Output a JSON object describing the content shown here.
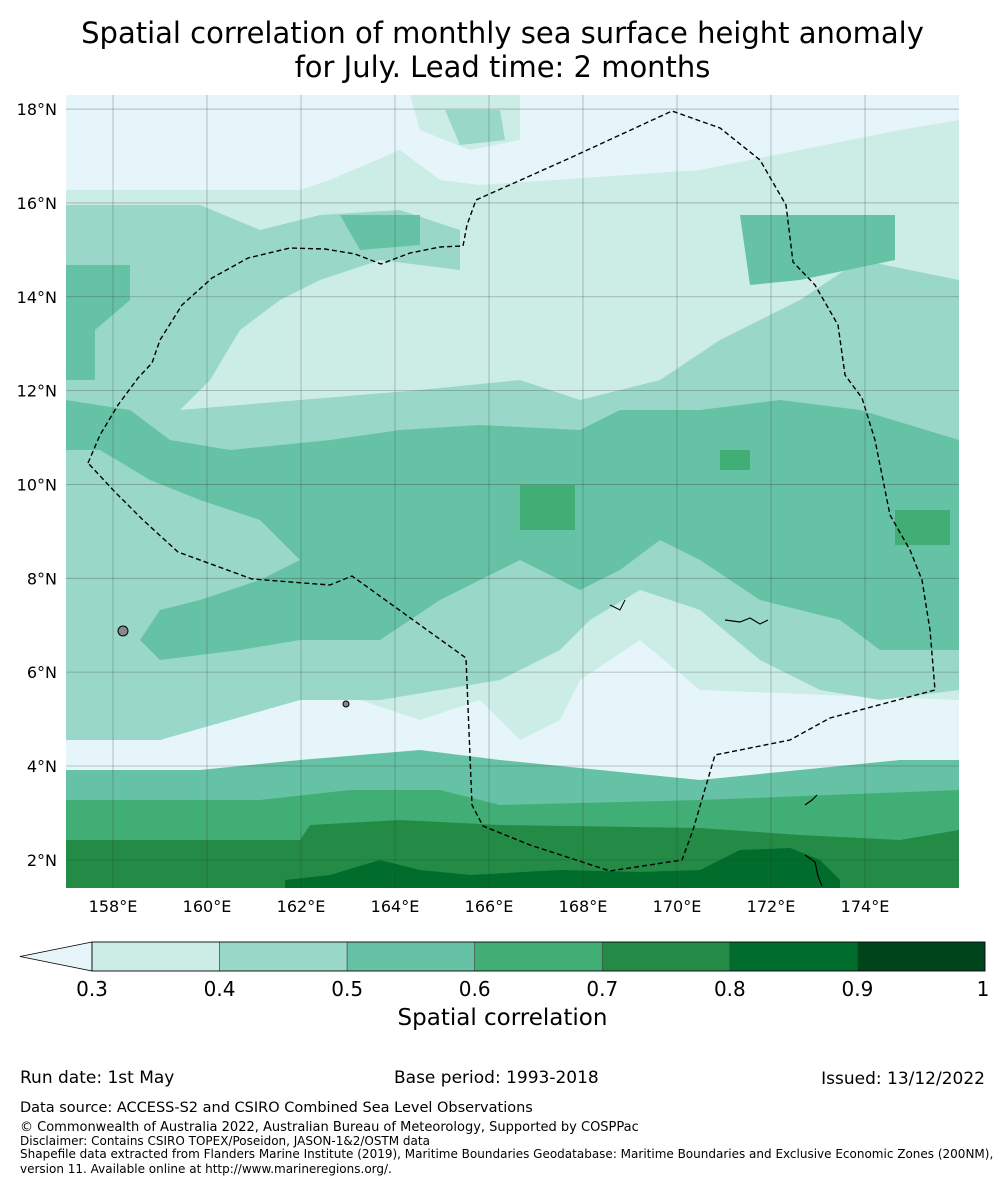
{
  "title_line1": "Spatial correlation of monthly sea surface height anomaly",
  "title_line2": "for July. Lead time: 2 months",
  "map": {
    "lon_range": [
      157,
      176
    ],
    "lat_range": [
      1.4,
      18.3
    ],
    "lon_ticks": [
      "158°E",
      "160°E",
      "162°E",
      "164°E",
      "166°E",
      "168°E",
      "170°E",
      "172°E",
      "174°E"
    ],
    "lat_ticks": [
      "18°N",
      "16°N",
      "14°N",
      "12°N",
      "10°N",
      "8°N",
      "6°N",
      "4°N",
      "2°N"
    ],
    "grid": true,
    "eez_boundary": "Federated States of Micronesia / Marshall Islands EEZ (dashed)"
  },
  "colorbar": {
    "label": "Spatial correlation",
    "ticks": [
      "0.3",
      "0.4",
      "0.5",
      "0.6",
      "0.7",
      "0.8",
      "0.9",
      "1"
    ],
    "colors": [
      "#e5f5f9",
      "#ccece6",
      "#99d8c9",
      "#66c2a4",
      "#41ae76",
      "#238b45",
      "#006d2c",
      "#00441b"
    ]
  },
  "footer": {
    "run_date": "Run date: 1st May",
    "base_period": "Base period: 1993-2018",
    "issued": "Issued: 13/12/2022",
    "data_source": "Data source: ACCESS-S2 and CSIRO Combined Sea Level Observations",
    "copyright": "© Commonwealth of Australia 2022, Australian Bureau of Meteorology, Supported by COSPPac",
    "disclaimer": "Disclaimer: Contains CSIRO TOPEX/Poseidon, JASON-1&2/OSTM data",
    "shapefile1": "Shapefile data extracted from Flanders Marine Institute (2019), Maritime Boundaries Geodatabase: Maritime Boundaries and Exclusive Economic Zones (200NM),",
    "shapefile2": "version 11. Available online at http://www.marineregions.org/."
  }
}
